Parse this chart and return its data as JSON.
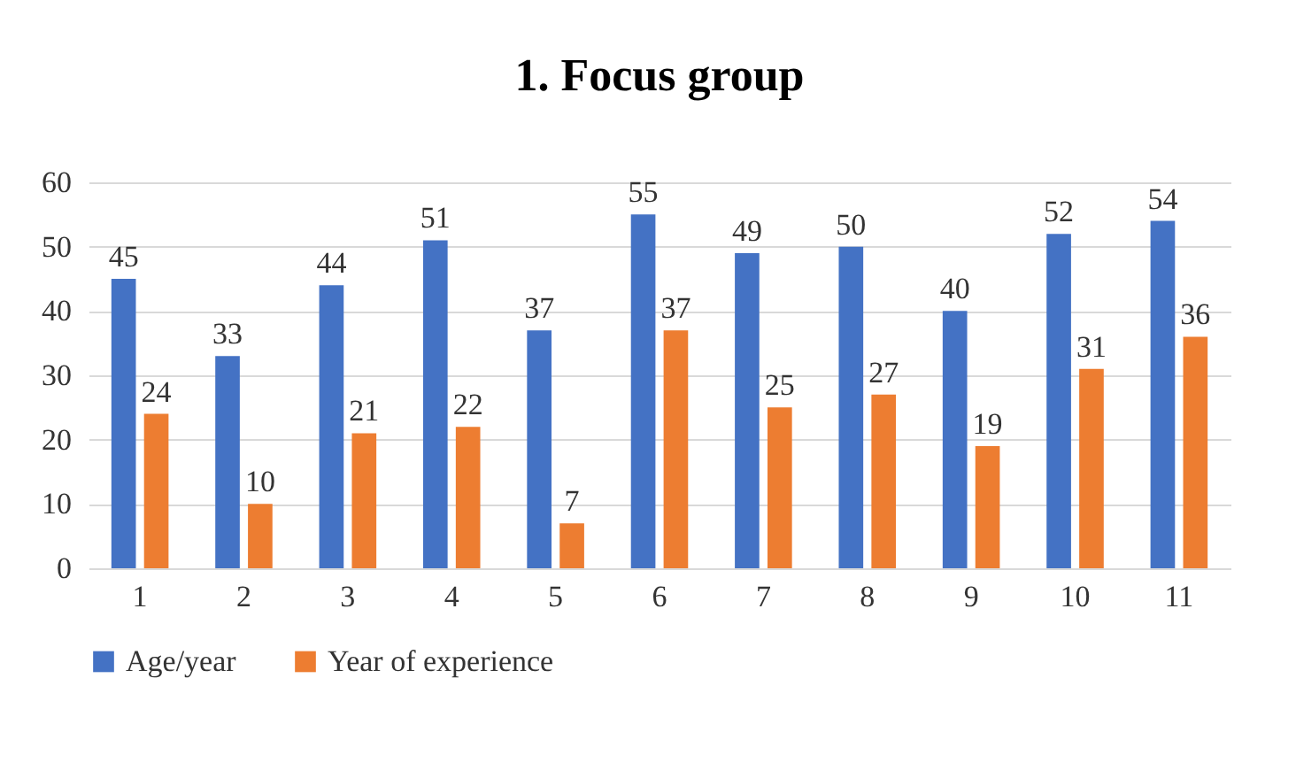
{
  "chart_data": {
    "type": "bar",
    "title": "1. Focus group",
    "categories": [
      "1",
      "2",
      "3",
      "4",
      "5",
      "6",
      "7",
      "8",
      "9",
      "10",
      "11"
    ],
    "series": [
      {
        "name": "Age/year",
        "color": "#4472c4",
        "values": [
          45,
          33,
          44,
          51,
          37,
          55,
          49,
          50,
          40,
          52,
          54
        ]
      },
      {
        "name": "Year of experience",
        "color": "#ed7d31",
        "values": [
          24,
          10,
          21,
          22,
          7,
          37,
          25,
          27,
          19,
          31,
          36
        ]
      }
    ],
    "ylim": [
      0,
      60
    ],
    "yticks": [
      0,
      10,
      20,
      30,
      40,
      50,
      60
    ],
    "grid": "y",
    "legend": "bottom",
    "data_labels": true
  }
}
